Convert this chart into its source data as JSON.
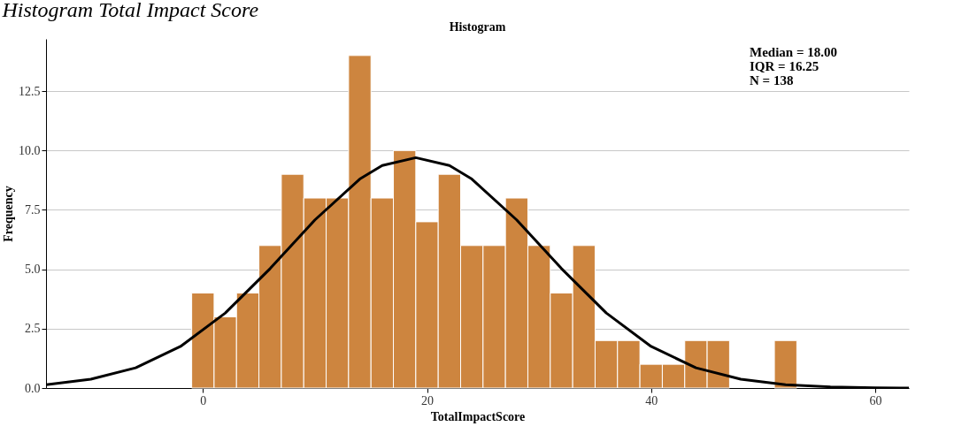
{
  "chart_data": {
    "type": "histogram",
    "title": "Histogram Total Impact Score",
    "subtitle": "Histogram",
    "xlabel": "TotalImpactScore",
    "ylabel": "Frequency",
    "bins": [
      -1,
      1,
      3,
      5,
      7,
      9,
      11,
      13,
      15,
      17,
      19,
      21,
      23,
      25,
      27,
      29,
      31,
      33,
      35,
      37,
      39,
      41,
      43,
      45,
      47,
      49,
      51,
      53
    ],
    "values": [
      4,
      3,
      4,
      6,
      9,
      8,
      8,
      14,
      8,
      10,
      7,
      9,
      6,
      6,
      8,
      6,
      4,
      6,
      2,
      2,
      1,
      1,
      2,
      2,
      0,
      0,
      2
    ],
    "color": "#cd853f",
    "series": [
      {
        "type": "line",
        "color": "#000000",
        "x": [
          -14,
          -10,
          -6,
          -2,
          2,
          6,
          10,
          14,
          16,
          19,
          22,
          24,
          28,
          32,
          36,
          40,
          44,
          48,
          52,
          56,
          60,
          63
        ],
        "values": [
          0.14,
          0.37,
          0.85,
          1.75,
          3.16,
          5.03,
          7.08,
          8.8,
          9.37,
          9.7,
          9.37,
          8.8,
          7.08,
          5.03,
          3.16,
          1.75,
          0.85,
          0.37,
          0.14,
          0.05,
          0.01,
          0.0
        ]
      }
    ],
    "xlim": [
      -14,
      63
    ],
    "xticks": [
      0,
      20,
      40,
      60
    ],
    "ylim": [
      0,
      14.7
    ],
    "yticks": [
      {
        "value": 0,
        "label": "0.0"
      },
      2.5,
      {
        "value": 5,
        "label": "5.0"
      },
      7.5,
      {
        "value": 10,
        "label": "10.0"
      },
      12.5
    ],
    "grid": "y",
    "annotations": [
      "Median = 18.00",
      "IQR = 16.25",
      "N = 138"
    ]
  }
}
